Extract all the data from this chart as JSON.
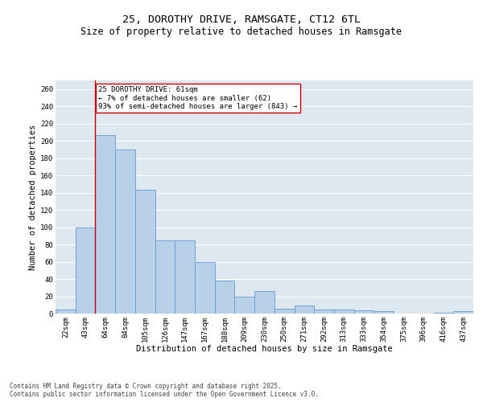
{
  "title_line1": "25, DOROTHY DRIVE, RAMSGATE, CT12 6TL",
  "title_line2": "Size of property relative to detached houses in Ramsgate",
  "xlabel": "Distribution of detached houses by size in Ramsgate",
  "ylabel": "Number of detached properties",
  "categories": [
    "22sqm",
    "43sqm",
    "64sqm",
    "84sqm",
    "105sqm",
    "126sqm",
    "147sqm",
    "167sqm",
    "188sqm",
    "209sqm",
    "230sqm",
    "250sqm",
    "271sqm",
    "292sqm",
    "313sqm",
    "333sqm",
    "354sqm",
    "375sqm",
    "396sqm",
    "416sqm",
    "437sqm"
  ],
  "values": [
    5,
    100,
    207,
    190,
    143,
    85,
    85,
    60,
    38,
    20,
    26,
    6,
    9,
    5,
    5,
    4,
    3,
    0,
    0,
    1,
    3
  ],
  "bar_color": "#b8d0e8",
  "bar_edge_color": "#6699cc",
  "vline_color": "#cc0000",
  "vline_x_index": 2,
  "annotation_text_line1": "25 DOROTHY DRIVE: 61sqm",
  "annotation_text_line2": "← 7% of detached houses are smaller (62)",
  "annotation_text_line3": "93% of semi-detached houses are larger (843) →",
  "annotation_box_edgecolor": "#cc0000",
  "annotation_box_facecolor": "white",
  "ylim_max": 270,
  "yticks": [
    0,
    20,
    40,
    60,
    80,
    100,
    120,
    140,
    160,
    180,
    200,
    220,
    240,
    260
  ],
  "bg_color": "#dde8f0",
  "grid_color": "white",
  "footer_text": "Contains HM Land Registry data © Crown copyright and database right 2025.\nContains public sector information licensed under the Open Government Licence v3.0.",
  "title_fontsize": 9.5,
  "subtitle_fontsize": 8.5,
  "axis_label_fontsize": 7.5,
  "tick_fontsize": 6.5,
  "annotation_fontsize": 6.5,
  "footer_fontsize": 5.5
}
